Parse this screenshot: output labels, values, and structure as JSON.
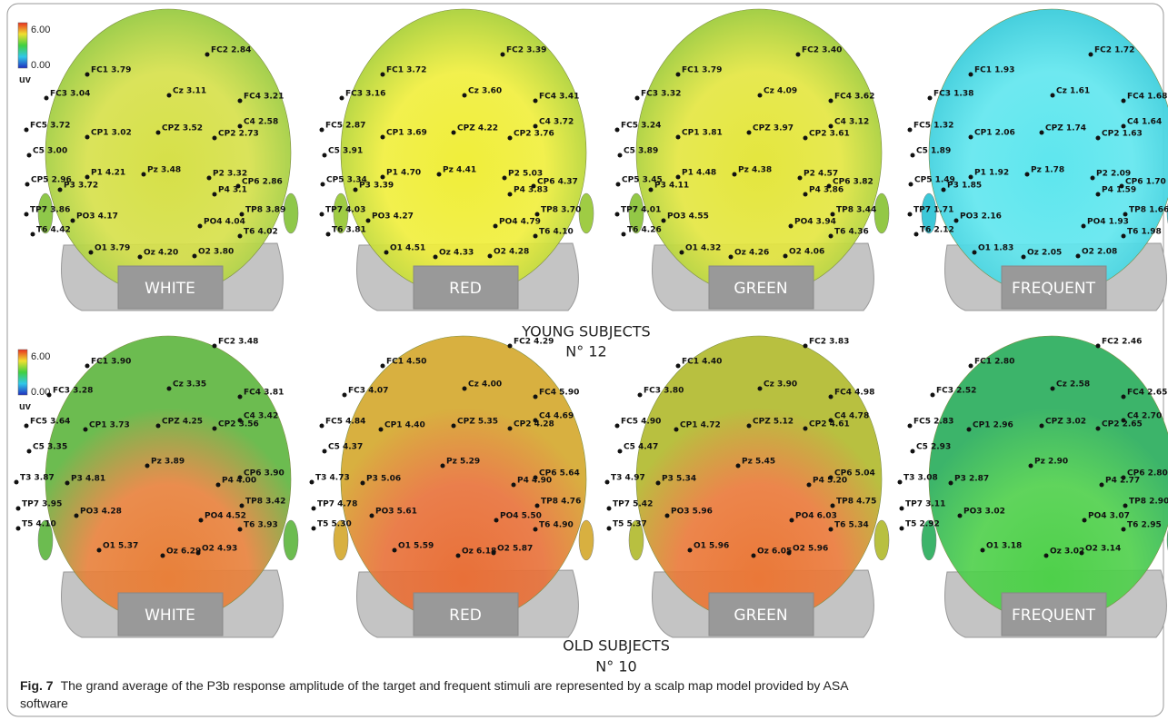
{
  "figure": {
    "scales": [
      {
        "max": "6.00",
        "min": "0.00",
        "unit": "uv"
      },
      {
        "max": "6.00",
        "min": "0.00",
        "unit": "uv"
      }
    ],
    "groups": [
      {
        "title": "YOUNG SUBJECTS",
        "count": "N° 12",
        "maps": [
          {
            "label": "WHITE",
            "colors": [
              "#8fc84a",
              "#d6e048"
            ],
            "electrodes": [
              "FC1 3.79",
              "FC2 2.84",
              "FC3 3.04",
              "Cz 3.11",
              "FC4 3.21",
              "FC5 3.72",
              "C4 2.58",
              "CP1 3.02",
              "CPZ 3.52",
              "CP2 2.73",
              "C5 3.00",
              "P1 4.21",
              "Pz 3.48",
              "P2 3.32",
              "CP5 2.96",
              "CP6 2.86",
              "P3 3.72",
              "P4 3.1",
              "TP7 3.86",
              "TP8 3.89",
              "PO3 4.17",
              "PO4 4.04",
              "T6 4.42",
              "T6 4.02",
              "O1 3.79",
              "Oz 4.20",
              "O2 3.80"
            ]
          },
          {
            "label": "RED",
            "colors": [
              "#9fcc44",
              "#f0ee3a"
            ],
            "electrodes": [
              "FC1 3.72",
              "FC2 3.39",
              "FC3 3.16",
              "Cz 3.60",
              "FC4 3.41",
              "FC5 2.87",
              "C4 3.72",
              "CP1 3.69",
              "CPZ 4.22",
              "CP2 3.76",
              "C5 3.91",
              "P1 4.70",
              "Pz 4.41",
              "P2 5.03",
              "CP5 3.34",
              "CP6 4.37",
              "P3 3.39",
              "P4 3.83",
              "TP7 4.03",
              "TP8 3.70",
              "PO3 4.27",
              "PO4 4.79",
              "T6 3.81",
              "T6 4.10",
              "O1 4.51",
              "Oz 4.33",
              "O2 4.28"
            ]
          },
          {
            "label": "GREEN",
            "colors": [
              "#93c846",
              "#e4e63e"
            ],
            "electrodes": [
              "FC1 3.79",
              "FC2 3.40",
              "FC3 3.32",
              "Cz 4.09",
              "FC4 3.62",
              "FC5 3.24",
              "C4 3.12",
              "CP1 3.81",
              "CPZ 3.97",
              "CP2 3.61",
              "C5 3.89",
              "P1 4.48",
              "Pz 4.38",
              "P2 4.57",
              "CP5 3.45",
              "CP6 3.82",
              "P3 4.11",
              "P4 3.86",
              "TP7 4.01",
              "TP8 3.44",
              "PO3 4.55",
              "PO4 3.94",
              "T6 4.26",
              "T6 4.36",
              "O1 4.32",
              "Oz 4.26",
              "O2 4.06"
            ]
          },
          {
            "label": "FREQUENT",
            "colors": [
              "#3cc8d8",
              "#5ee6ee"
            ],
            "electrodes": [
              "FC1 1.93",
              "FC2 1.72",
              "FC3 1.38",
              "Cz 1.61",
              "FC4 1.68",
              "FC5 1.32",
              "C4 1.64",
              "CP1 2.06",
              "CPZ 1.74",
              "CP2 1.63",
              "C5 1.89",
              "P1 1.92",
              "Pz 1.78",
              "P2 2.09",
              "CP5 1.49",
              "CP6 1.70",
              "P3 1.85",
              "P4 1.59",
              "TP7 1.71",
              "TP8 1.66",
              "PO3 2.16",
              "PO4 1.93",
              "T6 2.12",
              "T6 1.98",
              "O1 1.83",
              "Oz 2.05",
              "O2 2.08"
            ]
          }
        ]
      },
      {
        "title": "OLD SUBJECTS",
        "count": "N° 10",
        "maps": [
          {
            "label": "WHITE",
            "colors": [
              "#6cbc50",
              "#e8803a"
            ],
            "electrodes": [
              "FC1 3.90",
              "FC2 3.48",
              "FC3 3.28",
              "Cz 3.35",
              "FC4 3.81",
              "FC5 3.64",
              "C4 3.42",
              "CP1 3.73",
              "CPZ 4.25",
              "CP2 3.56",
              "C5 3.35",
              "Pz 3.89",
              "CP6 3.90",
              "P3 4.81",
              "P4 4.00",
              "T3 3.87",
              "TP7 3.95",
              "TP8 3.42",
              "PO3 4.28",
              "PO4 4.52",
              "T5 4.10",
              "T6 3.93",
              "O1 5.37",
              "Oz 6.29",
              "O2 4.93"
            ]
          },
          {
            "label": "RED",
            "colors": [
              "#d8b040",
              "#e87038"
            ],
            "electrodes": [
              "FC1 4.50",
              "FC2 4.29",
              "FC3 4.07",
              "Cz 4.00",
              "FC4 5.90",
              "FC5 4.84",
              "C4 4.69",
              "CP1 4.40",
              "CPZ 5.35",
              "CP2 4.28",
              "C5 4.37",
              "Pz 5.29",
              "CP6 5.64",
              "P3 5.06",
              "P4 4.90",
              "T3 4.73",
              "TP7 4.78",
              "TP8 4.76",
              "PO3 5.61",
              "PO4 5.50",
              "T5 5.30",
              "T6 4.90",
              "O1 5.59",
              "Oz 6.18",
              "O2 5.87"
            ]
          },
          {
            "label": "GREEN",
            "colors": [
              "#b8c040",
              "#ea7838"
            ],
            "electrodes": [
              "FC1 4.40",
              "FC2 3.83",
              "FC3 3.80",
              "Cz 3.90",
              "FC4 4.98",
              "FC5 4.90",
              "C4 4.78",
              "CP1 4.72",
              "CPZ 5.12",
              "CP2 4.61",
              "C5 4.47",
              "Pz 5.45",
              "CP6 5.04",
              "P3 5.34",
              "P4 5.20",
              "T3 4.97",
              "TP7 5.42",
              "TP8 4.75",
              "PO3 5.96",
              "PO4 6.03",
              "T5 5.37",
              "T6 5.34",
              "O1 5.96",
              "Oz 6.05",
              "O2 5.96"
            ]
          },
          {
            "label": "FREQUENT",
            "colors": [
              "#3cb46a",
              "#4ed04a"
            ],
            "electrodes": [
              "FC1 2.80",
              "FC2 2.46",
              "FC3 2.52",
              "Cz 2.58",
              "FC4 2.65",
              "FC5 2.83",
              "C4 2.70",
              "CP1 2.96",
              "CPZ 3.02",
              "CP2 2.65",
              "C5 2.93",
              "Pz 2.90",
              "CP6 2.80",
              "P3 2.87",
              "P4 2.77",
              "T3 3.08",
              "TP7 3.11",
              "TP8 2.90",
              "PO3 3.02",
              "PO4 3.07",
              "T5 2.92",
              "T6 2.95",
              "O1 3.18",
              "Oz 3.02",
              "O2 3.14"
            ]
          }
        ]
      }
    ],
    "caption": {
      "label": "Fig. 7",
      "text": "The grand average of the P3b response amplitude of the target and frequent stimuli are represented by a scalp map model provided by ASA",
      "text2": "software"
    }
  }
}
